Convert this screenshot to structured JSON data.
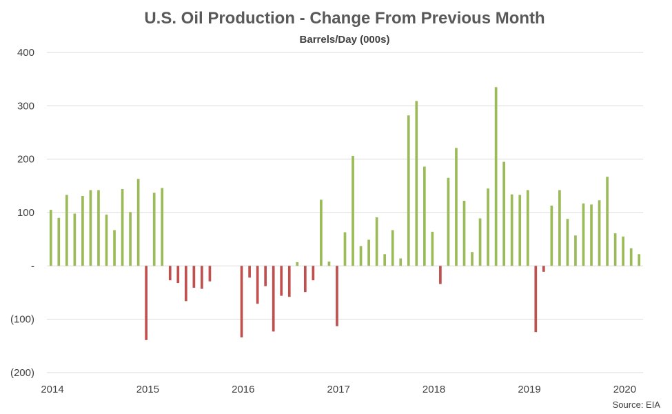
{
  "chart_data": {
    "type": "bar",
    "title": "U.S. Oil Production - Change From Previous Month",
    "subtitle": "Barrels/Day (000s)",
    "source": "Source: EIA",
    "ylim": [
      -200,
      400
    ],
    "y_ticks": [
      {
        "value": 400,
        "label": "400"
      },
      {
        "value": 300,
        "label": "300"
      },
      {
        "value": 200,
        "label": "200"
      },
      {
        "value": 100,
        "label": "100"
      },
      {
        "value": 0,
        "label": "-"
      },
      {
        "value": -100,
        "label": "(100)"
      },
      {
        "value": -200,
        "label": "(200)"
      }
    ],
    "x_ticks": [
      "2014",
      "2015",
      "2016",
      "2017",
      "2018",
      "2019",
      "2020"
    ],
    "x_start": "2014-01",
    "grid": true,
    "legend": "none",
    "colors": {
      "positive": "#9bbb59",
      "negative": "#c0504d",
      "grid": "#d9d9d9",
      "text": "#404040",
      "title": "#595959"
    },
    "values": [
      105,
      90,
      133,
      98,
      131,
      142,
      142,
      96,
      67,
      144,
      101,
      163,
      -139,
      137,
      146,
      -27,
      -32,
      -66,
      -41,
      -43,
      -29,
      0,
      0,
      0,
      -134,
      -22,
      -71,
      -38,
      -123,
      -56,
      -58,
      7,
      -49,
      -27,
      124,
      8,
      -113,
      63,
      206,
      37,
      49,
      91,
      22,
      67,
      14,
      282,
      309,
      186,
      64,
      -34,
      165,
      221,
      122,
      26,
      89,
      145,
      335,
      195,
      134,
      133,
      142,
      -124,
      -11,
      113,
      142,
      88,
      57,
      117,
      115,
      123,
      167,
      61,
      55,
      33,
      22
    ]
  }
}
